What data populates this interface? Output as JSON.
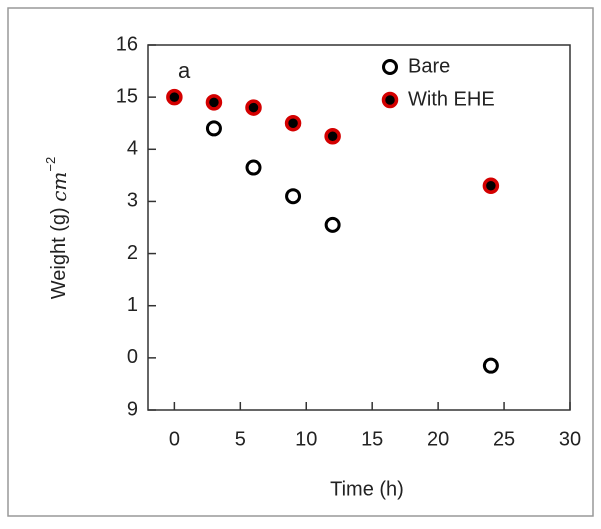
{
  "chart_data": {
    "type": "scatter",
    "xlabel": "Time (h)",
    "ylabel": "Weight (g)",
    "ylabel_unit": "cm",
    "ylabel_exp": "−2",
    "annotation": "a",
    "xlim": [
      -2,
      30
    ],
    "xticks": [
      0,
      5,
      10,
      15,
      20,
      25,
      30
    ],
    "ylim": [
      9,
      16
    ],
    "yticks": [
      16,
      15,
      {
        "value": 14,
        "label": "4"
      },
      {
        "value": 13,
        "label": "3"
      },
      {
        "value": 12,
        "label": "2"
      },
      {
        "value": 11,
        "label": "1"
      },
      {
        "value": 10,
        "label": "0"
      },
      9
    ],
    "legend": "upper right",
    "series": [
      {
        "name": "Bare",
        "color": "#000000",
        "x": [
          3,
          6,
          9,
          12,
          24
        ],
        "values": [
          14.4,
          13.65,
          13.1,
          12.55,
          9.85
        ]
      },
      {
        "name": "With EHE",
        "color": "#d40000",
        "x": [
          0,
          3,
          6,
          9,
          12,
          24
        ],
        "values": [
          15.0,
          14.9,
          14.8,
          14.5,
          14.25,
          13.3
        ]
      }
    ]
  }
}
